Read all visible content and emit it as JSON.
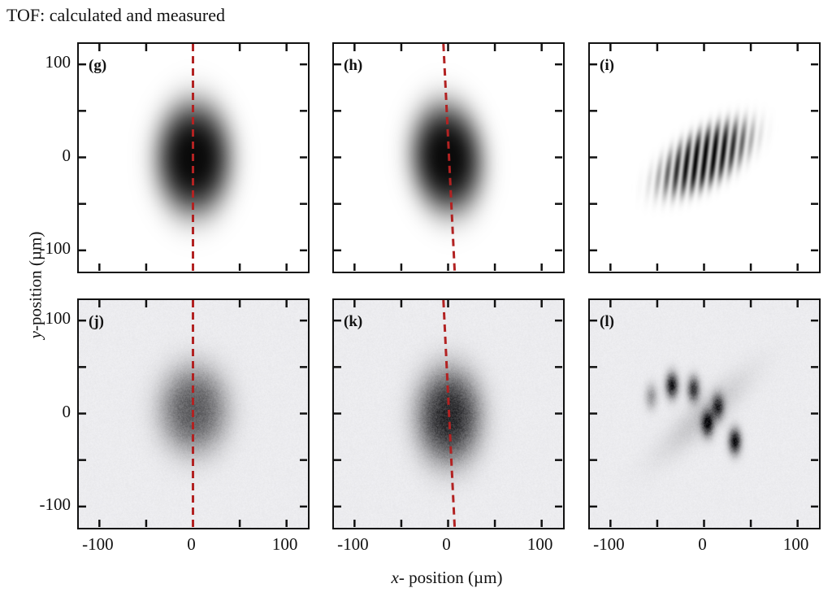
{
  "title": "TOF: calculated and measured",
  "chart_data": {
    "type": "heatmap",
    "title": "TOF: calculated and measured",
    "xlabel_var": "x",
    "xlabel_rest": "- position (µm)",
    "ylabel_var": "y",
    "ylabel_rest": "-position (µm)",
    "xlim": [
      -122,
      122
    ],
    "ylim": [
      -122,
      122
    ],
    "tick_step": 50,
    "x_tick_labels": [
      "-100",
      "0",
      "100"
    ],
    "y_tick_labels": [
      "100",
      "0",
      "-100"
    ],
    "colormap": "grayscale (dark = high density)",
    "dashed_line_color": "#b22222",
    "panels": [
      {
        "label": "(g)",
        "row": "calculated",
        "kind": "gaussian",
        "dashed_line": {
          "x_top": 0,
          "x_bottom": 0
        }
      },
      {
        "label": "(h)",
        "row": "calculated",
        "kind": "gaussian",
        "dashed_line": {
          "x_top": -5,
          "x_bottom": 7
        }
      },
      {
        "label": "(i)",
        "row": "calculated",
        "kind": "fringes"
      },
      {
        "label": "(j)",
        "row": "measured",
        "kind": "gaussian",
        "dashed_line": {
          "x_top": 0,
          "x_bottom": 0
        }
      },
      {
        "label": "(k)",
        "row": "measured",
        "kind": "gaussian",
        "dashed_line": {
          "x_top": -5,
          "x_bottom": 7
        }
      },
      {
        "label": "(l)",
        "row": "measured",
        "kind": "fringes"
      }
    ]
  }
}
